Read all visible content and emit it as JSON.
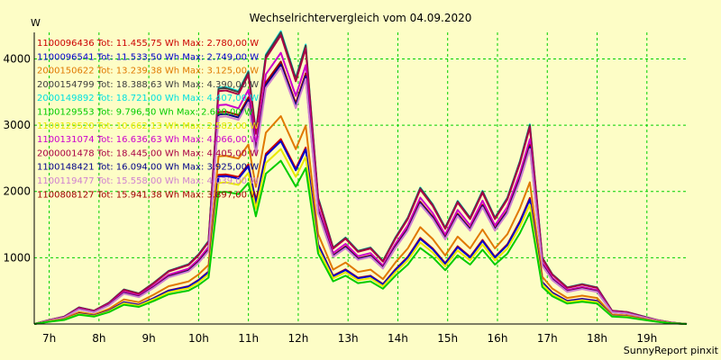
{
  "chart_data": {
    "type": "line",
    "title": "Wechselrichtervergleich vom 04.09.2020",
    "ylabel": "W",
    "xlabel": "",
    "footer": "SunnyReport pinxit",
    "ylim": [
      0,
      4400
    ],
    "xlim": [
      6.7,
      19.8
    ],
    "y_ticks": [
      1000,
      2000,
      3000,
      4000
    ],
    "x_ticks": [
      {
        "value": 7,
        "label": "7h"
      },
      {
        "value": 8,
        "label": "8h"
      },
      {
        "value": 9,
        "label": "9h"
      },
      {
        "value": 10,
        "label": "10h"
      },
      {
        "value": 11,
        "label": "11h"
      },
      {
        "value": 12,
        "label": "12h"
      },
      {
        "value": 13,
        "label": "13h"
      },
      {
        "value": 14,
        "label": "14h"
      },
      {
        "value": 15,
        "label": "15h"
      },
      {
        "value": 16,
        "label": "16h"
      },
      {
        "value": 17,
        "label": "17h"
      },
      {
        "value": 18,
        "label": "18h"
      },
      {
        "value": 19,
        "label": "19h"
      }
    ],
    "grid": true,
    "legend_position": "top-left",
    "series": [
      {
        "name": "1100096436 Tot: 11.455,75 Wh Max: 2.780,00 W",
        "color": "#cc0000",
        "scale": 0.634
      },
      {
        "name": "1100096541 Tot: 11.533,50 Wh Max: 2.749,00 W",
        "color": "#0000cc",
        "scale": 0.627
      },
      {
        "name": "2000150622 Tot: 13.239,38 Wh Max: 3.125,00 W",
        "color": "#e07800",
        "scale": 0.713
      },
      {
        "name": "2000154799 Tot: 18.388,63 Wh Max: 4.390,00 W",
        "color": "#404040",
        "scale": 1.0
      },
      {
        "name": "2000149892 Tot: 18.721,00 Wh Max: 4.407,00 W",
        "color": "#00e0e0",
        "scale": 1.004
      },
      {
        "name": "1100129553 Tot: 9.796,50 Wh Max: 2.600,00 W",
        "color": "#00cc00",
        "scale": 0.56
      },
      {
        "name": "1100129520 Tot: 10.662,13 Wh Max: 2.582,00 W",
        "color": "#e8e800",
        "scale": 0.6
      },
      {
        "name": "1100131074 Tot: 16.636,63 Wh Max: 4.066,00 W",
        "color": "#cc00cc",
        "scale": 0.93
      },
      {
        "name": "2000001478 Tot: 18.445,00 Wh Max: 4.405,00 W",
        "color": "#aa0044",
        "scale": 0.99
      },
      {
        "name": "1100148421 Tot: 16.094,00 Wh Max: 3.925,00 W",
        "color": "#000088",
        "scale": 0.89
      },
      {
        "name": "1100119477 Tot: 15.558,00 Wh Max: 4.039,00 W",
        "color": "#d080d0",
        "scale": 0.88
      },
      {
        "name": "1100808127 Tot: 15.941,38 Wh Max: 3.897,00 W",
        "color": "#a00000",
        "scale": 0.9
      }
    ],
    "base_profile_x": [
      6.7,
      7.0,
      7.3,
      7.6,
      7.9,
      8.2,
      8.5,
      8.8,
      9.1,
      9.4,
      9.6,
      9.8,
      10.0,
      10.2,
      10.4,
      10.55,
      10.8,
      11.0,
      11.15,
      11.35,
      11.65,
      11.95,
      12.15,
      12.4,
      12.7,
      12.95,
      13.2,
      13.45,
      13.7,
      13.95,
      14.2,
      14.45,
      14.7,
      14.95,
      15.2,
      15.45,
      15.7,
      15.95,
      16.2,
      16.45,
      16.65,
      16.9,
      17.1,
      17.4,
      17.7,
      18.0,
      18.3,
      18.6,
      18.9,
      19.2,
      19.5,
      19.8
    ],
    "base_profile_y": [
      0,
      60,
      110,
      250,
      200,
      320,
      520,
      460,
      620,
      800,
      850,
      900,
      1050,
      1250,
      3550,
      3560,
      3500,
      3800,
      2900,
      4050,
      4400,
      3700,
      4200,
      1900,
      1150,
      1300,
      1100,
      1150,
      950,
      1300,
      1600,
      2050,
      1800,
      1450,
      1850,
      1600,
      2000,
      1600,
      1900,
      2450,
      3000,
      1000,
      750,
      550,
      600,
      550,
      200,
      180,
      120,
      60,
      20,
      0
    ]
  }
}
